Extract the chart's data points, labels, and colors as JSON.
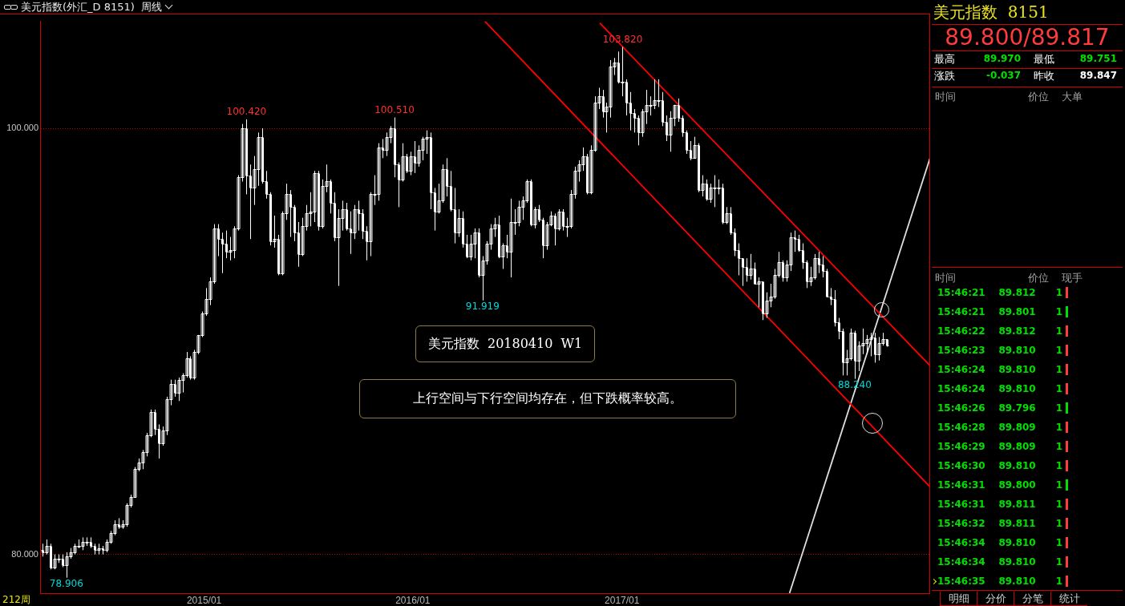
{
  "chart_data": [
    {
      "type": "candlestick",
      "title": "美元指数(外汇_D 8151)",
      "subtitle": "周线",
      "color": "#ffffff",
      "x": [
        "2014-03-24",
        "2014-03-31",
        "2014-04-07",
        "2014-04-14",
        "2014-04-21",
        "2014-04-28",
        "2014-05-05",
        "2014-05-12",
        "2014-05-19",
        "2014-05-26",
        "2014-06-02",
        "2014-06-09",
        "2014-06-16",
        "2014-06-23",
        "2014-06-30",
        "2014-07-07",
        "2014-07-14",
        "2014-07-21",
        "2014-07-28",
        "2014-08-04",
        "2014-08-11",
        "2014-08-18",
        "2014-08-25",
        "2014-09-01",
        "2014-09-08",
        "2014-09-15",
        "2014-09-22",
        "2014-09-29",
        "2014-10-06",
        "2014-10-13",
        "2014-10-20",
        "2014-10-27",
        "2014-11-03",
        "2014-11-10",
        "2014-11-17",
        "2014-11-24",
        "2014-12-01",
        "2014-12-08",
        "2014-12-15",
        "2014-12-22",
        "2014-12-29",
        "2015-01-05",
        "2015-01-12",
        "2015-01-19",
        "2015-01-26",
        "2015-02-02",
        "2015-02-09",
        "2015-02-16",
        "2015-02-23",
        "2015-03-02",
        "2015-03-09",
        "2015-03-16",
        "2015-03-23",
        "2015-03-30",
        "2015-04-06",
        "2015-04-13",
        "2015-04-20",
        "2015-04-27",
        "2015-05-04",
        "2015-05-11",
        "2015-05-18",
        "2015-05-25",
        "2015-06-01",
        "2015-06-08",
        "2015-06-15",
        "2015-06-22",
        "2015-06-29",
        "2015-07-06",
        "2015-07-13",
        "2015-07-20",
        "2015-07-27",
        "2015-08-03",
        "2015-08-10",
        "2015-08-17",
        "2015-08-24",
        "2015-08-31",
        "2015-09-07",
        "2015-09-14",
        "2015-09-21",
        "2015-09-28",
        "2015-10-05",
        "2015-10-12",
        "2015-10-19",
        "2015-10-26",
        "2015-11-02",
        "2015-11-09",
        "2015-11-16",
        "2015-11-23",
        "2015-11-30",
        "2015-12-07",
        "2015-12-14",
        "2015-12-21",
        "2015-12-28",
        "2016-01-04",
        "2016-01-11",
        "2016-01-18",
        "2016-01-25",
        "2016-02-01",
        "2016-02-08",
        "2016-02-15",
        "2016-02-22",
        "2016-02-29",
        "2016-03-07",
        "2016-03-14",
        "2016-03-21",
        "2016-03-28",
        "2016-04-04",
        "2016-04-11",
        "2016-04-18",
        "2016-04-25",
        "2016-05-02",
        "2016-05-09",
        "2016-05-16",
        "2016-05-23",
        "2016-05-30",
        "2016-06-06",
        "2016-06-13",
        "2016-06-20",
        "2016-06-27",
        "2016-07-04",
        "2016-07-11",
        "2016-07-18",
        "2016-07-25",
        "2016-08-01",
        "2016-08-08",
        "2016-08-15",
        "2016-08-22",
        "2016-08-29",
        "2016-09-05",
        "2016-09-12",
        "2016-09-19",
        "2016-09-26",
        "2016-10-03",
        "2016-10-10",
        "2016-10-17",
        "2016-10-24",
        "2016-10-31",
        "2016-11-07",
        "2016-11-14",
        "2016-11-21",
        "2016-11-28",
        "2016-12-05",
        "2016-12-12",
        "2016-12-19",
        "2016-12-26",
        "2017-01-02",
        "2017-01-09",
        "2017-01-16",
        "2017-01-23",
        "2017-01-30",
        "2017-02-06",
        "2017-02-13",
        "2017-02-20",
        "2017-02-27",
        "2017-03-06",
        "2017-03-13",
        "2017-03-20",
        "2017-03-27",
        "2017-04-03",
        "2017-04-10",
        "2017-04-17",
        "2017-04-24",
        "2017-05-01",
        "2017-05-08",
        "2017-05-15",
        "2017-05-22",
        "2017-05-29",
        "2017-06-05",
        "2017-06-12",
        "2017-06-19",
        "2017-06-26",
        "2017-07-03",
        "2017-07-10",
        "2017-07-17",
        "2017-07-24",
        "2017-07-31",
        "2017-08-07",
        "2017-08-14",
        "2017-08-21",
        "2017-08-28",
        "2017-09-04",
        "2017-09-11",
        "2017-09-18",
        "2017-09-25",
        "2017-10-02",
        "2017-10-09",
        "2017-10-16",
        "2017-10-23",
        "2017-10-30",
        "2017-11-06",
        "2017-11-13",
        "2017-11-20",
        "2017-11-27",
        "2017-12-04",
        "2017-12-11",
        "2017-12-18",
        "2017-12-25",
        "2018-01-01",
        "2018-01-08",
        "2018-01-15",
        "2018-01-22",
        "2018-01-29",
        "2018-02-05",
        "2018-02-12",
        "2018-02-19",
        "2018-02-26",
        "2018-03-05",
        "2018-03-12",
        "2018-03-19",
        "2018-03-26",
        "2018-04-02",
        "2018-04-09"
      ],
      "ohlc": [
        [
          80.2,
          80.5,
          79.9,
          80.1
        ],
        [
          80.1,
          80.7,
          80.0,
          80.4
        ],
        [
          80.4,
          80.5,
          79.3,
          79.4
        ],
        [
          79.4,
          80.0,
          79.3,
          79.8
        ],
        [
          79.8,
          80.0,
          79.6,
          79.8
        ],
        [
          79.8,
          80.0,
          79.4,
          79.5
        ],
        [
          79.5,
          80.1,
          78.906,
          79.9
        ],
        [
          79.9,
          80.3,
          79.8,
          80.1
        ],
        [
          80.1,
          80.5,
          80.0,
          80.4
        ],
        [
          80.4,
          80.7,
          80.3,
          80.4
        ],
        [
          80.4,
          80.8,
          80.2,
          80.6
        ],
        [
          80.6,
          80.8,
          80.4,
          80.6
        ],
        [
          80.6,
          80.8,
          80.3,
          80.4
        ],
        [
          80.4,
          80.5,
          80.0,
          80.2
        ],
        [
          80.2,
          80.5,
          80.0,
          80.3
        ],
        [
          80.3,
          80.4,
          80.0,
          80.2
        ],
        [
          80.2,
          80.7,
          80.1,
          80.6
        ],
        [
          80.6,
          81.1,
          80.5,
          81.0
        ],
        [
          81.0,
          81.6,
          80.9,
          81.4
        ],
        [
          81.4,
          81.7,
          81.2,
          81.3
        ],
        [
          81.3,
          81.6,
          81.2,
          81.4
        ],
        [
          81.4,
          82.4,
          81.3,
          82.3
        ],
        [
          82.3,
          82.8,
          82.2,
          82.7
        ],
        [
          82.7,
          84.1,
          82.7,
          84.0
        ],
        [
          84.0,
          84.5,
          83.9,
          84.3
        ],
        [
          84.3,
          84.9,
          84.0,
          84.8
        ],
        [
          84.8,
          85.7,
          84.6,
          85.6
        ],
        [
          85.6,
          86.8,
          85.5,
          86.7
        ],
        [
          86.7,
          86.8,
          85.6,
          85.9
        ],
        [
          85.9,
          86.1,
          84.5,
          85.2
        ],
        [
          85.2,
          86.0,
          85.1,
          85.8
        ],
        [
          85.8,
          87.4,
          85.6,
          87.3
        ],
        [
          87.3,
          88.2,
          87.0,
          88.0
        ],
        [
          88.0,
          88.2,
          87.4,
          87.6
        ],
        [
          87.6,
          88.3,
          87.2,
          88.2
        ],
        [
          88.2,
          88.5,
          87.6,
          88.4
        ],
        [
          88.4,
          89.5,
          88.3,
          89.2
        ],
        [
          89.2,
          89.3,
          88.2,
          88.3
        ],
        [
          88.3,
          89.6,
          88.2,
          89.5
        ],
        [
          89.5,
          90.3,
          89.4,
          90.3
        ],
        [
          90.3,
          91.4,
          90.2,
          91.3
        ],
        [
          91.3,
          92.5,
          91.2,
          92.0
        ],
        [
          92.0,
          93.0,
          91.7,
          92.8
        ],
        [
          92.8,
          95.5,
          92.7,
          95.3
        ],
        [
          95.3,
          95.5,
          94.0,
          94.8
        ],
        [
          94.8,
          95.1,
          93.2,
          94.6
        ],
        [
          94.6,
          95.2,
          93.9,
          94.2
        ],
        [
          94.2,
          94.9,
          93.8,
          94.3
        ],
        [
          94.3,
          95.4,
          93.9,
          95.3
        ],
        [
          95.3,
          97.8,
          95.2,
          97.7
        ],
        [
          97.7,
          100.2,
          97.5,
          100.0
        ],
        [
          100.0,
          100.42,
          96.9,
          97.8
        ],
        [
          97.8,
          98.3,
          94.8,
          97.2
        ],
        [
          97.2,
          98.7,
          96.4,
          98.1
        ],
        [
          98.1,
          99.8,
          97.3,
          99.6
        ],
        [
          99.6,
          100.0,
          97.4,
          97.5
        ],
        [
          97.5,
          98.0,
          96.7,
          96.9
        ],
        [
          96.9,
          97.0,
          94.5,
          94.7
        ],
        [
          94.7,
          95.9,
          94.4,
          94.8
        ],
        [
          94.8,
          95.0,
          93.1,
          93.2
        ],
        [
          93.2,
          96.1,
          93.1,
          96.0
        ],
        [
          96.0,
          97.4,
          95.7,
          96.9
        ],
        [
          96.9,
          97.1,
          94.9,
          96.3
        ],
        [
          96.3,
          96.4,
          94.7,
          95.1
        ],
        [
          95.1,
          95.6,
          93.5,
          94.1
        ],
        [
          94.1,
          95.8,
          94.0,
          95.4
        ],
        [
          95.4,
          96.4,
          95.2,
          96.0
        ],
        [
          96.0,
          97.0,
          95.4,
          96.1
        ],
        [
          96.1,
          98.0,
          95.6,
          97.9
        ],
        [
          97.9,
          98.0,
          95.2,
          95.4
        ],
        [
          95.4,
          97.6,
          95.3,
          97.3
        ],
        [
          97.3,
          98.3,
          97.0,
          97.5
        ],
        [
          97.5,
          97.6,
          96.0,
          96.5
        ],
        [
          96.5,
          97.0,
          94.7,
          94.9
        ],
        [
          94.9,
          96.2,
          92.6,
          95.8
        ],
        [
          95.8,
          96.6,
          95.2,
          96.2
        ],
        [
          96.2,
          96.5,
          95.2,
          95.3
        ],
        [
          95.3,
          96.1,
          94.1,
          95.1
        ],
        [
          95.1,
          96.4,
          94.8,
          96.2
        ],
        [
          96.2,
          96.6,
          95.2,
          96.0
        ],
        [
          96.0,
          96.2,
          94.8,
          95.2
        ],
        [
          95.2,
          95.4,
          93.8,
          94.7
        ],
        [
          94.7,
          97.0,
          94.0,
          96.9
        ],
        [
          96.9,
          97.8,
          96.4,
          96.9
        ],
        [
          96.9,
          99.3,
          96.6,
          99.1
        ],
        [
          99.1,
          99.5,
          98.6,
          99.0
        ],
        [
          99.0,
          99.8,
          98.7,
          99.6
        ],
        [
          99.6,
          100.1,
          99.3,
          100.0
        ],
        [
          100.0,
          100.51,
          97.7,
          98.3
        ],
        [
          98.3,
          98.4,
          96.3,
          97.6
        ],
        [
          97.6,
          99.3,
          97.5,
          98.7
        ],
        [
          98.7,
          98.8,
          97.9,
          98.0
        ],
        [
          98.0,
          98.9,
          97.8,
          98.7
        ],
        [
          98.7,
          99.4,
          97.9,
          98.4
        ],
        [
          98.4,
          99.2,
          98.2,
          99.0
        ],
        [
          99.0,
          99.6,
          98.5,
          99.5
        ],
        [
          99.5,
          99.9,
          98.8,
          99.6
        ],
        [
          99.6,
          99.8,
          96.2,
          97.0
        ],
        [
          97.0,
          97.2,
          95.2,
          96.1
        ],
        [
          96.1,
          97.4,
          96.0,
          96.6
        ],
        [
          96.6,
          98.3,
          96.5,
          98.1
        ],
        [
          98.1,
          98.6,
          96.8,
          97.3
        ],
        [
          97.3,
          98.0,
          96.1,
          96.2
        ],
        [
          96.2,
          97.2,
          94.6,
          95.1
        ],
        [
          95.1,
          96.2,
          94.9,
          95.8
        ],
        [
          95.8,
          96.1,
          94.4,
          94.6
        ],
        [
          94.6,
          95.0,
          93.9,
          94.0
        ],
        [
          94.0,
          95.0,
          93.8,
          94.6
        ],
        [
          94.6,
          95.3,
          93.9,
          95.1
        ],
        [
          95.1,
          95.3,
          93.0,
          93.1
        ],
        [
          93.1,
          94.0,
          91.919,
          93.8
        ],
        [
          93.8,
          94.7,
          93.6,
          94.6
        ],
        [
          94.6,
          95.5,
          94.3,
          95.3
        ],
        [
          95.3,
          95.8,
          94.9,
          95.5
        ],
        [
          95.5,
          95.9,
          93.9,
          94.0
        ],
        [
          94.0,
          94.6,
          93.4,
          94.5
        ],
        [
          94.5,
          95.0,
          93.9,
          94.2
        ],
        [
          94.2,
          96.7,
          93.0,
          95.6
        ],
        [
          95.6,
          96.2,
          95.0,
          95.6
        ],
        [
          95.6,
          96.6,
          95.4,
          96.3
        ],
        [
          96.3,
          96.8,
          95.7,
          96.6
        ],
        [
          96.6,
          97.6,
          96.5,
          97.5
        ],
        [
          97.5,
          97.6,
          95.4,
          95.5
        ],
        [
          95.5,
          96.3,
          95.3,
          96.2
        ],
        [
          96.2,
          96.4,
          95.6,
          95.7
        ],
        [
          95.7,
          95.8,
          93.9,
          94.5
        ],
        [
          94.5,
          95.6,
          94.3,
          95.5
        ],
        [
          95.5,
          96.1,
          95.4,
          95.9
        ],
        [
          95.9,
          96.0,
          94.5,
          95.3
        ],
        [
          95.3,
          96.2,
          95.2,
          96.1
        ],
        [
          96.1,
          96.2,
          95.2,
          95.4
        ],
        [
          95.4,
          95.8,
          94.9,
          95.4
        ],
        [
          95.4,
          97.1,
          95.3,
          96.9
        ],
        [
          96.9,
          98.2,
          96.7,
          98.0
        ],
        [
          98.0,
          98.5,
          97.5,
          98.3
        ],
        [
          98.3,
          99.1,
          98.0,
          98.7
        ],
        [
          98.7,
          98.8,
          96.9,
          97.0
        ],
        [
          97.0,
          99.2,
          96.9,
          99.0
        ],
        [
          99.0,
          101.5,
          98.9,
          101.2
        ],
        [
          101.2,
          101.9,
          100.9,
          101.5
        ],
        [
          101.5,
          101.8,
          100.5,
          100.8
        ],
        [
          100.8,
          101.2,
          99.8,
          101.0
        ],
        [
          101.0,
          103.2,
          100.5,
          102.9
        ],
        [
          102.9,
          103.3,
          102.5,
          103.1
        ],
        [
          103.1,
          103.6,
          102.1,
          102.2
        ],
        [
          102.2,
          103.82,
          101.5,
          102.2
        ],
        [
          102.2,
          102.3,
          100.6,
          101.2
        ],
        [
          101.2,
          101.7,
          99.9,
          100.7
        ],
        [
          100.7,
          100.9,
          99.8,
          100.5
        ],
        [
          100.5,
          100.6,
          99.2,
          99.8
        ],
        [
          99.8,
          100.9,
          99.6,
          100.8
        ],
        [
          100.8,
          101.8,
          100.2,
          101.1
        ],
        [
          101.1,
          101.5,
          100.6,
          101.1
        ],
        [
          101.1,
          102.3,
          100.9,
          101.3
        ],
        [
          101.3,
          102.3,
          101.0,
          101.3
        ],
        [
          101.3,
          101.7,
          100.1,
          100.3
        ],
        [
          100.3,
          100.6,
          99.4,
          99.7
        ],
        [
          99.7,
          100.8,
          98.9,
          100.5
        ],
        [
          100.5,
          101.1,
          100.1,
          101.1
        ],
        [
          101.1,
          101.4,
          100.3,
          100.5
        ],
        [
          100.5,
          100.6,
          99.6,
          99.8
        ],
        [
          99.8,
          99.9,
          98.8,
          99.0
        ],
        [
          99.0,
          99.4,
          98.5,
          98.6
        ],
        [
          98.6,
          99.6,
          98.6,
          99.2
        ],
        [
          99.2,
          99.3,
          97.0,
          97.1
        ],
        [
          97.1,
          97.8,
          96.8,
          97.4
        ],
        [
          97.4,
          97.6,
          96.6,
          96.7
        ],
        [
          96.7,
          97.4,
          96.5,
          97.2
        ],
        [
          97.2,
          97.8,
          96.3,
          97.2
        ],
        [
          97.2,
          97.6,
          96.9,
          97.2
        ],
        [
          97.2,
          97.4,
          95.5,
          95.6
        ],
        [
          95.6,
          96.3,
          95.5,
          96.0
        ],
        [
          96.0,
          96.3,
          95.0,
          95.1
        ],
        [
          95.1,
          95.3,
          94.0,
          94.3
        ],
        [
          94.3,
          94.6,
          93.1,
          93.9
        ],
        [
          93.9,
          93.9,
          92.6,
          93.5
        ],
        [
          93.5,
          93.9,
          92.8,
          93.1
        ],
        [
          93.1,
          94.1,
          92.9,
          93.4
        ],
        [
          93.4,
          93.7,
          92.7,
          92.7
        ],
        [
          92.7,
          93.0,
          91.6,
          92.8
        ],
        [
          92.8,
          92.8,
          91.0,
          91.3
        ],
        [
          91.3,
          92.3,
          91.1,
          91.9
        ],
        [
          91.9,
          92.7,
          91.6,
          92.1
        ],
        [
          92.1,
          93.4,
          92.0,
          93.1
        ],
        [
          93.1,
          94.2,
          93.0,
          93.7
        ],
        [
          93.7,
          93.8,
          92.8,
          93.0
        ],
        [
          93.0,
          93.8,
          92.8,
          93.6
        ],
        [
          93.6,
          95.1,
          93.3,
          94.9
        ],
        [
          94.9,
          95.2,
          94.2,
          94.8
        ],
        [
          94.8,
          95.0,
          94.2,
          94.3
        ],
        [
          94.3,
          94.6,
          93.4,
          93.7
        ],
        [
          93.7,
          93.8,
          92.5,
          92.8
        ],
        [
          92.8,
          93.5,
          92.6,
          93.0
        ],
        [
          93.0,
          94.1,
          92.9,
          93.9
        ],
        [
          93.9,
          94.2,
          93.2,
          93.6
        ],
        [
          93.6,
          94.0,
          93.0,
          93.3
        ],
        [
          93.3,
          93.4,
          92.1,
          92.1
        ],
        [
          92.1,
          92.5,
          91.7,
          92.0
        ],
        [
          92.0,
          92.4,
          90.7,
          90.9
        ],
        [
          90.9,
          91.1,
          90.1,
          90.5
        ],
        [
          90.5,
          90.6,
          88.4,
          89.0
        ],
        [
          89.0,
          89.6,
          88.4,
          89.2
        ],
        [
          89.2,
          90.6,
          89.1,
          90.4
        ],
        [
          90.4,
          90.5,
          88.24,
          89.1
        ],
        [
          89.1,
          90.0,
          88.6,
          89.8
        ],
        [
          89.8,
          90.6,
          89.4,
          89.9
        ],
        [
          89.9,
          90.3,
          89.4,
          90.1
        ],
        [
          90.1,
          90.4,
          89.3,
          90.2
        ],
        [
          90.2,
          90.4,
          89.0,
          89.4
        ],
        [
          89.4,
          90.2,
          89.1,
          89.9
        ],
        [
          89.9,
          90.4,
          89.8,
          90.1
        ],
        [
          90.1,
          90.1,
          89.75,
          89.8
        ]
      ],
      "series": [
        {
          "type": "line",
          "color": "#ff0000",
          "x": [
            "2016-05-06",
            "2018-06-24"
          ],
          "values": [
            105.02,
            83.16
          ]
        },
        {
          "type": "line",
          "color": "#ff0000",
          "x": [
            "2016-11-23",
            "2018-06-24"
          ],
          "values": [
            104.94,
            88.85
          ]
        },
        {
          "type": "line",
          "color": "#e0e0e0",
          "x": [
            "2017-10-21",
            "2018-06-24"
          ],
          "values": [
            78.18,
            98.62
          ]
        }
      ],
      "xlim": [
        "2014-03-20",
        "2018-06-24"
      ],
      "xticks": [
        {
          "value": "2015-01-01",
          "label": "2015/01"
        },
        {
          "value": "2016-01-01",
          "label": "2016/01"
        },
        {
          "value": "2017-01-01",
          "label": "2017/01"
        }
      ],
      "ylim": [
        78.18,
        105.02
      ],
      "yticks": [
        {
          "value": 80,
          "label": "80.000"
        },
        {
          "value": 100,
          "label": "100.000"
        }
      ],
      "grid": "y",
      "annotations": [
        {
          "text": "78.906",
          "x": "2014-05-05",
          "y": 78.906
        },
        {
          "text": "100.420",
          "x": "2015-03-16",
          "y": 100.42
        },
        {
          "text": "100.510",
          "x": "2015-11-30",
          "y": 100.51
        },
        {
          "text": "91.919",
          "x": "2016-05-02",
          "y": 91.919
        },
        {
          "text": "103.820",
          "x": "2017-01-02",
          "y": 103.82
        },
        {
          "text": "88.240",
          "x": "2018-02-12",
          "y": 88.24
        },
        "212周",
        "美元指数  20180410  W1",
        "上行空间与下行空间均存在，但下跌概率较高。"
      ]
    },
    {
      "type": "other",
      "title": "美元指数  8151",
      "annotations": [
        "89.800/89.817",
        "最高",
        "89.970",
        "最低",
        "89.751",
        "涨跌",
        "-0.037",
        "昨收",
        "89.847",
        "时间",
        "价位",
        "大单",
        "时间",
        "价位",
        "现手",
        "15:46:21",
        "89.812",
        "1",
        "15:46:21",
        "89.801",
        "1",
        "15:46:22",
        "89.812",
        "1",
        "15:46:23",
        "89.810",
        "1",
        "15:46:24",
        "89.810",
        "1",
        "15:46:24",
        "89.810",
        "1",
        "15:46:26",
        "89.796",
        "1",
        "15:46:28",
        "89.809",
        "1",
        "15:46:29",
        "89.809",
        "1",
        "15:46:30",
        "89.810",
        "1",
        "15:46:31",
        "89.800",
        "1",
        "15:46:31",
        "89.811",
        "1",
        "15:46:32",
        "89.811",
        "1",
        "15:46:34",
        "89.810",
        "1",
        "15:46:34",
        "89.810",
        "1",
        "15:46:35",
        "89.810",
        "1",
        "明细",
        "分价",
        "分笔",
        "统计"
      ],
      "colors": [
        "#ff3c3c",
        "#00e000",
        "#ff3c3c",
        "#ff3c3c",
        "#ff3c3c",
        "#ff3c3c",
        "#00e000",
        "#ff3c3c",
        "#ff3c3c",
        "#ff3c3c",
        "#00e000",
        "#ff3c3c",
        "#ff3c3c",
        "#ff3c3c",
        "#ff3c3c",
        "#ff3c3c"
      ]
    }
  ]
}
